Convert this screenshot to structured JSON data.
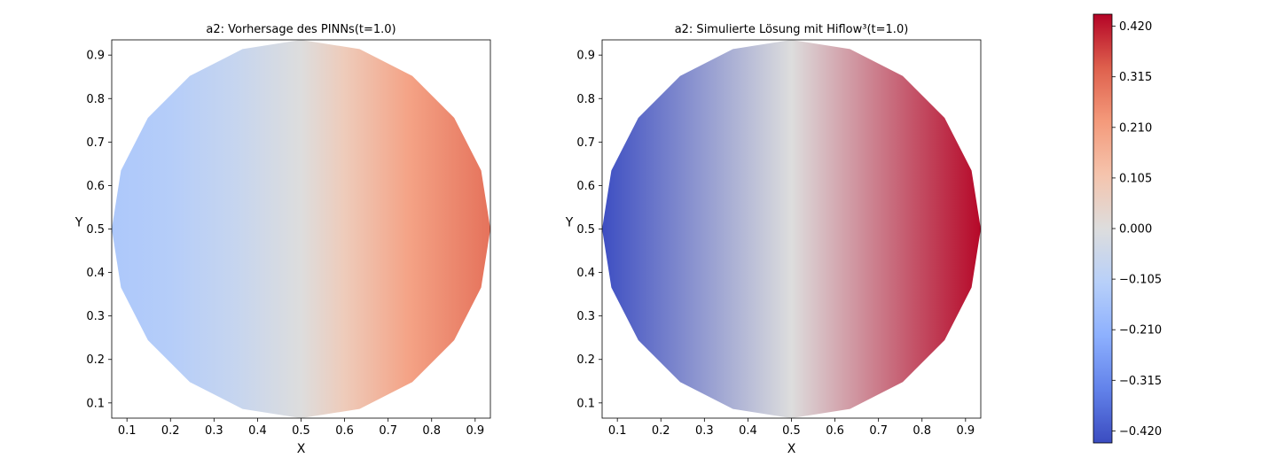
{
  "chart_data": [
    {
      "type": "heatmap",
      "title": "a2: Vorhersage des PINNs(t=1.0)",
      "xlabel": "X",
      "ylabel": "Y",
      "xlim": [
        0.065,
        0.935
      ],
      "ylim": [
        0.065,
        0.935
      ],
      "xticks": [
        0.1,
        0.2,
        0.3,
        0.4,
        0.5,
        0.6,
        0.7,
        0.8,
        0.9
      ],
      "yticks": [
        0.1,
        0.2,
        0.3,
        0.4,
        0.5,
        0.6,
        0.7,
        0.8,
        0.9
      ],
      "domain_shape": "circle",
      "field_profile": {
        "x": [
          0.065,
          0.2,
          0.35,
          0.5,
          0.6,
          0.75,
          0.935
        ],
        "value": [
          -0.14,
          -0.12,
          -0.07,
          0.0,
          0.08,
          0.2,
          0.3
        ]
      }
    },
    {
      "type": "heatmap",
      "title": "a2: Simulierte Lösung mit Hiflow³(t=1.0)",
      "xlabel": "X",
      "ylabel": "Y",
      "xlim": [
        0.065,
        0.935
      ],
      "ylim": [
        0.065,
        0.935
      ],
      "xticks": [
        0.1,
        0.2,
        0.3,
        0.4,
        0.5,
        0.6,
        0.7,
        0.8,
        0.9
      ],
      "yticks": [
        0.1,
        0.2,
        0.3,
        0.4,
        0.5,
        0.6,
        0.7,
        0.8,
        0.9
      ],
      "domain_shape": "circle",
      "field_profile": {
        "x": [
          0.065,
          0.5,
          0.935
        ],
        "value": [
          -0.44,
          0.0,
          0.44
        ]
      }
    }
  ],
  "colorbar": {
    "colormap": "coolwarm",
    "range": [
      -0.445,
      0.445
    ],
    "ticks": [
      0.42,
      0.315,
      0.21,
      0.105,
      0.0,
      -0.105,
      -0.21,
      -0.315,
      -0.42
    ],
    "tick_labels": [
      "0.420",
      "0.315",
      "0.210",
      "0.105",
      "0.000",
      "−0.105",
      "−0.210",
      "−0.315",
      "−0.420"
    ],
    "low_color": "#3b4cc0",
    "mid_color": "#dddcdc",
    "high_color": "#b40426"
  }
}
